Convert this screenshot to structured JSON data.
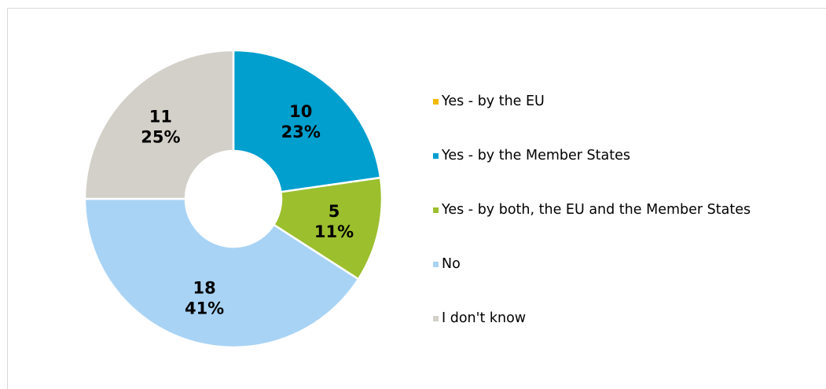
{
  "chart_data": {
    "type": "pie",
    "donut": true,
    "categories": [
      "Yes - by the EU",
      "Yes - by the Member States",
      "Yes - by both, the EU and the Member States",
      "No",
      "I don't know"
    ],
    "values": [
      0,
      10,
      5,
      18,
      11
    ],
    "percent_labels": [
      "0%",
      "23%",
      "11%",
      "41%",
      "25%"
    ],
    "colors": [
      "#f5b800",
      "#009fce",
      "#9cbf2e",
      "#a8d3f5",
      "#d2d0c8"
    ],
    "legend_position": "right"
  }
}
